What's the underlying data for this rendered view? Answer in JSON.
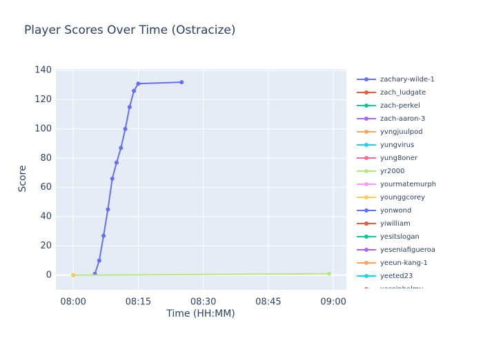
{
  "chart_data": {
    "type": "line",
    "title": "Player Scores Over Time (Ostracize)",
    "x_label": "Time (HH:MM)",
    "y_label": "Score",
    "xlim": [
      "07:56",
      "09:03"
    ],
    "xticks": [
      "08:00",
      "08:15",
      "08:30",
      "08:45",
      "09:00"
    ],
    "ylim": [
      -10,
      141
    ],
    "yticks": [
      0,
      20,
      40,
      60,
      80,
      100,
      120,
      140
    ],
    "grid": true,
    "legend": "right",
    "series": [
      {
        "name": "zachary-wilde-1",
        "color": "#636efa",
        "x": [
          "08:05",
          "08:06",
          "08:07",
          "08:08",
          "08:09",
          "08:10",
          "08:11",
          "08:12",
          "08:13",
          "08:14",
          "08:15",
          "08:25"
        ],
        "values": [
          1,
          10,
          27,
          45,
          66,
          77,
          87,
          100,
          115,
          126,
          131,
          132
        ]
      },
      {
        "name": "zach_ludgate",
        "color": "#ef553b",
        "x": [],
        "values": []
      },
      {
        "name": "zach-perkel",
        "color": "#00cc96",
        "x": [],
        "values": []
      },
      {
        "name": "zach-aaron-3",
        "color": "#ab63fa",
        "x": [],
        "values": []
      },
      {
        "name": "yvngjuulpod",
        "color": "#ffa15a",
        "x": [
          "08:00"
        ],
        "values": [
          0
        ]
      },
      {
        "name": "yungvirus",
        "color": "#19d3f3",
        "x": [],
        "values": []
      },
      {
        "name": "yung8oner",
        "color": "#ff6692",
        "x": [],
        "values": []
      },
      {
        "name": "yr2000",
        "color": "#b6e880",
        "x": [
          "08:00",
          "08:59"
        ],
        "values": [
          0,
          1
        ]
      },
      {
        "name": "yourmatemurph",
        "color": "#ff97ff",
        "x": [],
        "values": []
      },
      {
        "name": "younggcorey",
        "color": "#fecb52",
        "x": [
          "08:00"
        ],
        "values": [
          0
        ]
      },
      {
        "name": "yonwond",
        "color": "#636efa",
        "x": [],
        "values": []
      },
      {
        "name": "yiwilliam",
        "color": "#ef553b",
        "x": [],
        "values": []
      },
      {
        "name": "yesitslogan",
        "color": "#00cc96",
        "x": [],
        "values": []
      },
      {
        "name": "yeseniafigueroa",
        "color": "#ab63fa",
        "x": [],
        "values": []
      },
      {
        "name": "yeeun-kang-1",
        "color": "#ffa15a",
        "x": [],
        "values": []
      },
      {
        "name": "yeeted23",
        "color": "#19d3f3",
        "x": [],
        "values": []
      },
      {
        "name": "yassinhelmy",
        "color": "#ff6692",
        "x": [],
        "values": []
      }
    ]
  }
}
